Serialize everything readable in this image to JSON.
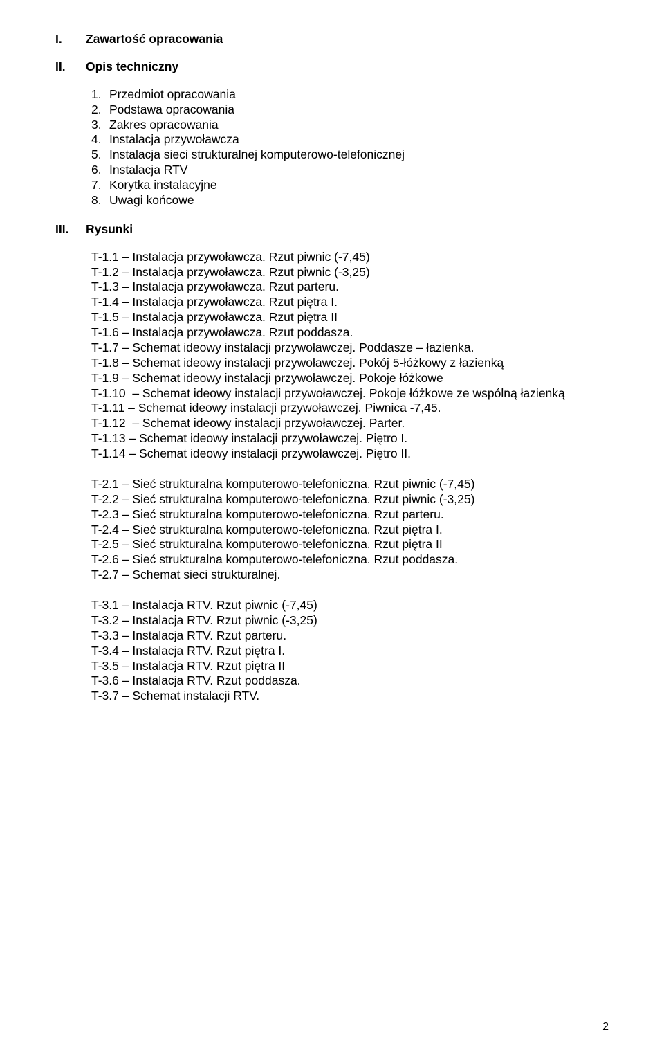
{
  "sections": [
    {
      "roman": "I.",
      "title": "Zawartość  opracowania"
    },
    {
      "roman": "II.",
      "title": "Opis techniczny"
    }
  ],
  "opis_list_prefix": [
    "1.",
    "2.",
    "3.",
    "4.",
    "5.",
    "6.",
    "7.",
    "8."
  ],
  "opis_list": [
    "Przedmiot opracowania",
    "Podstawa opracowania",
    "Zakres opracowania",
    "Instalacja przywoławcza",
    "Instalacja sieci strukturalnej komputerowo-telefonicznej",
    "Instalacja RTV",
    "Korytka instalacyjne",
    "Uwagi końcowe"
  ],
  "rysunki_header": {
    "roman": "III.",
    "title": "Rysunki"
  },
  "t1": [
    "T-1.1 – Instalacja przywoławcza. Rzut piwnic (-7,45)",
    "T-1.2 – Instalacja przywoławcza. Rzut piwnic (-3,25)",
    "T-1.3 – Instalacja przywoławcza. Rzut parteru.",
    "T-1.4 – Instalacja przywoławcza. Rzut piętra I.",
    "T-1.5 – Instalacja przywoławcza. Rzut piętra II",
    "T-1.6 – Instalacja przywoławcza. Rzut poddasza.",
    "T-1.7 – Schemat ideowy instalacji przywoławczej. Poddasze – łazienka.",
    "T-1.8 – Schemat ideowy instalacji przywoławczej. Pokój 5-łóżkowy z łazienką",
    "T-1.9 – Schemat ideowy instalacji przywoławczej. Pokoje łóżkowe",
    "T-1.10  – Schemat ideowy instalacji przywoławczej. Pokoje łóżkowe ze wspólną łazienką",
    "T-1.11 – Schemat ideowy instalacji przywoławczej. Piwnica -7,45.",
    "T-1.12  – Schemat ideowy instalacji przywoławczej. Parter.",
    "T-1.13 – Schemat ideowy instalacji przywoławczej. Piętro I.",
    "T-1.14 – Schemat ideowy instalacji przywoławczej. Piętro II."
  ],
  "t2": [
    "T-2.1 – Sieć strukturalna komputerowo-telefoniczna. Rzut piwnic (-7,45)",
    "T-2.2 – Sieć strukturalna komputerowo-telefoniczna. Rzut piwnic (-3,25)",
    "T-2.3 – Sieć strukturalna komputerowo-telefoniczna. Rzut parteru.",
    "T-2.4 – Sieć strukturalna komputerowo-telefoniczna. Rzut piętra I.",
    "T-2.5 – Sieć strukturalna komputerowo-telefoniczna. Rzut piętra II",
    "T-2.6 – Sieć strukturalna komputerowo-telefoniczna. Rzut poddasza.",
    "T-2.7 – Schemat sieci strukturalnej."
  ],
  "t3": [
    "T-3.1 – Instalacja RTV. Rzut piwnic (-7,45)",
    "T-3.2 – Instalacja RTV. Rzut piwnic (-3,25)",
    "T-3.3 – Instalacja RTV. Rzut parteru.",
    "T-3.4 – Instalacja RTV. Rzut piętra I.",
    "T-3.5 – Instalacja RTV. Rzut piętra II",
    "T-3.6 – Instalacja RTV. Rzut poddasza.",
    "T-3.7 – Schemat instalacji RTV."
  ],
  "page_number": "2"
}
